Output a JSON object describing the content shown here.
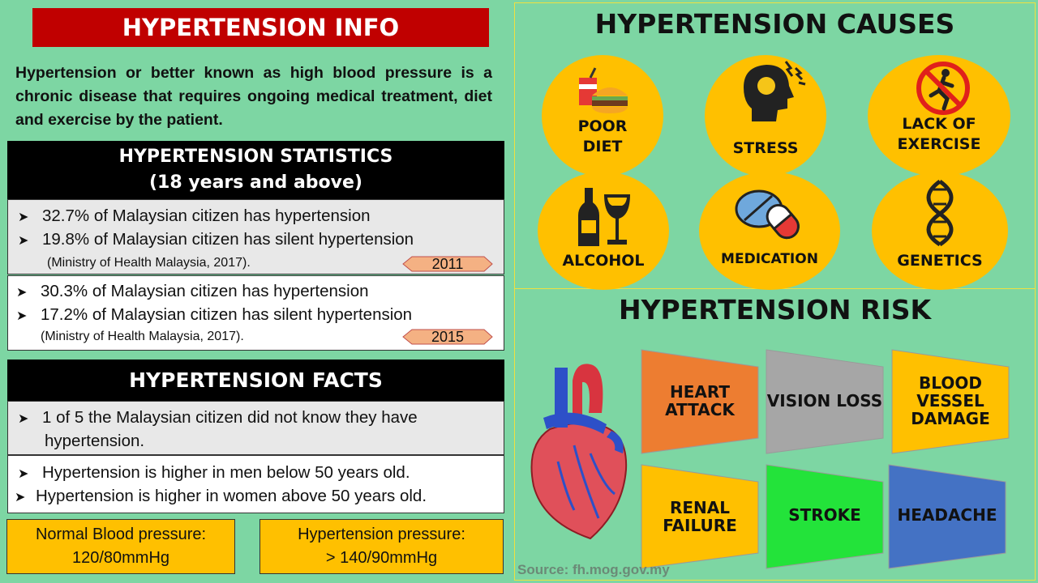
{
  "title": "HYPERTENSION INFO",
  "intro": "Hypertension or better known as high blood pressure is a chronic disease that requires ongoing medical treatment, diet and exercise by the patient.",
  "statistics": {
    "heading_line1": "HYPERTENSION STATISTICS",
    "heading_line2": "(18 years and above)",
    "groups": [
      {
        "year": "2011",
        "items": [
          "32.7% of Malaysian citizen has hypertension",
          "19.8% of Malaysian citizen has silent hypertension"
        ],
        "source": "(Ministry of Health Malaysia, 2017)."
      },
      {
        "year": "2015",
        "items": [
          "30.3% of Malaysian citizen has hypertension",
          "17.2% of Malaysian citizen has silent hypertension"
        ],
        "source": "(Ministry of Health Malaysia, 2017)."
      }
    ]
  },
  "facts": {
    "heading": "HYPERTENSION FACTS",
    "item1_line1": "1 of 5 the Malaysian citizen did not know they have",
    "item1_line2": "hypertension.",
    "items": [
      "Hypertension is higher in men below 50 years old.",
      "Hypertension is higher in women above 50 years old."
    ]
  },
  "bp": {
    "normal_label": "Normal Blood pressure:",
    "normal_value": "120/80mmHg",
    "hyper_label": "Hypertension pressure:",
    "hyper_value": "> 140/90mmHg"
  },
  "causes": {
    "heading": "HYPERTENSION CAUSES",
    "items": [
      {
        "line1": "POOR",
        "line2": "DIET",
        "icon": "fast-food-icon"
      },
      {
        "line1": "STRESS",
        "line2": "",
        "icon": "stressed-head-icon"
      },
      {
        "line1": "LACK OF",
        "line2": "EXERCISE",
        "icon": "no-running-icon"
      },
      {
        "line1": "ALCOHOL",
        "line2": "",
        "icon": "wine-bottle-glass-icon"
      },
      {
        "line1": "MEDICATION",
        "line2": "",
        "icon": "pills-icon"
      },
      {
        "line1": "GENETICS",
        "line2": "",
        "icon": "dna-icon"
      }
    ]
  },
  "risk": {
    "heading": "HYPERTENSION RISK",
    "items": [
      {
        "line1": "HEART",
        "line2": "ATTACK",
        "line3": "",
        "color": "#ed7d31"
      },
      {
        "line1": "VISION LOSS",
        "line2": "",
        "line3": "",
        "color": "#a6a6a6"
      },
      {
        "line1": "BLOOD",
        "line2": "VESSEL",
        "line3": "DAMAGE",
        "color": "#ffc000"
      },
      {
        "line1": "RENAL",
        "line2": "FAILURE",
        "line3": "",
        "color": "#ffc000"
      },
      {
        "line1": "STROKE",
        "line2": "",
        "line3": "",
        "color": "#23e33a"
      },
      {
        "line1": "HEADACHE",
        "line2": "",
        "line3": "",
        "color": "#4472c4"
      }
    ]
  },
  "source": "Source: fh.mog.gov.my",
  "colors": {
    "background": "#7dd6a3",
    "title_red": "#c00000",
    "accent_yellow": "#ffc000",
    "year_tag": "#f4b183"
  }
}
